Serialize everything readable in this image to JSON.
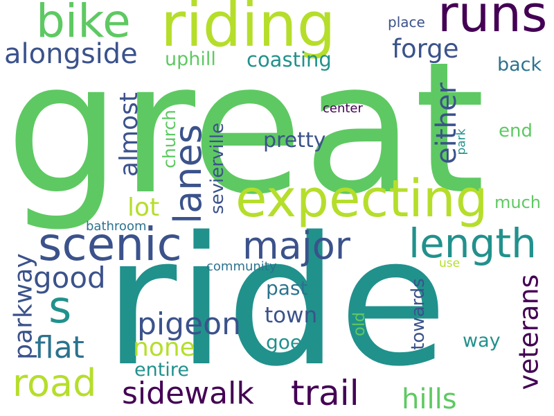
{
  "words": {
    "great": {
      "text": "great",
      "color": "#5ec962"
    },
    "ride": {
      "text": "ride",
      "color": "#21918c"
    },
    "riding": {
      "text": "riding",
      "color": "#b5de2b"
    },
    "runs": {
      "text": "runs",
      "color": "#440154"
    },
    "bike": {
      "text": "bike",
      "color": "#5ec962"
    },
    "alongside": {
      "text": "alongside",
      "color": "#3b528b"
    },
    "uphill": {
      "text": "uphill",
      "color": "#5ec962"
    },
    "coasting": {
      "text": "coasting",
      "color": "#21918c"
    },
    "forge": {
      "text": "forge",
      "color": "#3b528b"
    },
    "place": {
      "text": "place",
      "color": "#3b528b"
    },
    "back": {
      "text": "back",
      "color": "#2c728e"
    },
    "center": {
      "text": "center",
      "color": "#440154"
    },
    "expecting": {
      "text": "expecting",
      "color": "#b5de2b"
    },
    "scenic": {
      "text": "scenic",
      "color": "#3b528b"
    },
    "major": {
      "text": "major",
      "color": "#3b528b"
    },
    "length": {
      "text": "length",
      "color": "#21918c"
    },
    "lanes": {
      "text": "lanes",
      "color": "#3b528b"
    },
    "almost": {
      "text": "almost",
      "color": "#3b528b"
    },
    "church": {
      "text": "church",
      "color": "#5ec962"
    },
    "sevierville": {
      "text": "sevierville",
      "color": "#3b528b"
    },
    "either": {
      "text": "either",
      "color": "#3b528b"
    },
    "park": {
      "text": "park",
      "color": "#21918c"
    },
    "end": {
      "text": "end",
      "color": "#5ec962"
    },
    "much": {
      "text": "much",
      "color": "#5ec962"
    },
    "lot": {
      "text": "lot",
      "color": "#b5de2b"
    },
    "pretty": {
      "text": "pretty",
      "color": "#3b528b"
    },
    "bathroom": {
      "text": "bathroom",
      "color": "#2c728e"
    },
    "community": {
      "text": "community",
      "color": "#2c728e"
    },
    "use": {
      "text": "use",
      "color": "#b5de2b"
    },
    "s": {
      "text": "s",
      "color": "#21918c"
    },
    "good": {
      "text": "good",
      "color": "#3b528b"
    },
    "parkway": {
      "text": "parkway",
      "color": "#3b528b"
    },
    "pigeon": {
      "text": "pigeon",
      "color": "#3b528b"
    },
    "flat": {
      "text": "flat",
      "color": "#2c728e"
    },
    "none": {
      "text": "none",
      "color": "#b5de2b"
    },
    "road": {
      "text": "road",
      "color": "#b5de2b"
    },
    "entire": {
      "text": "entire",
      "color": "#21918c"
    },
    "sidewalk": {
      "text": "sidewalk",
      "color": "#440154"
    },
    "trail": {
      "text": "trail",
      "color": "#440154"
    },
    "past": {
      "text": "past",
      "color": "#2c728e"
    },
    "town": {
      "text": "town",
      "color": "#3b528b"
    },
    "goes": {
      "text": "goes",
      "color": "#21918c"
    },
    "old": {
      "text": "old",
      "color": "#5ec962"
    },
    "towards": {
      "text": "towards",
      "color": "#3b528b"
    },
    "way": {
      "text": "way",
      "color": "#21918c"
    },
    "veterans": {
      "text": "veterans",
      "color": "#440154"
    },
    "hills": {
      "text": "hills",
      "color": "#5ec962"
    }
  }
}
